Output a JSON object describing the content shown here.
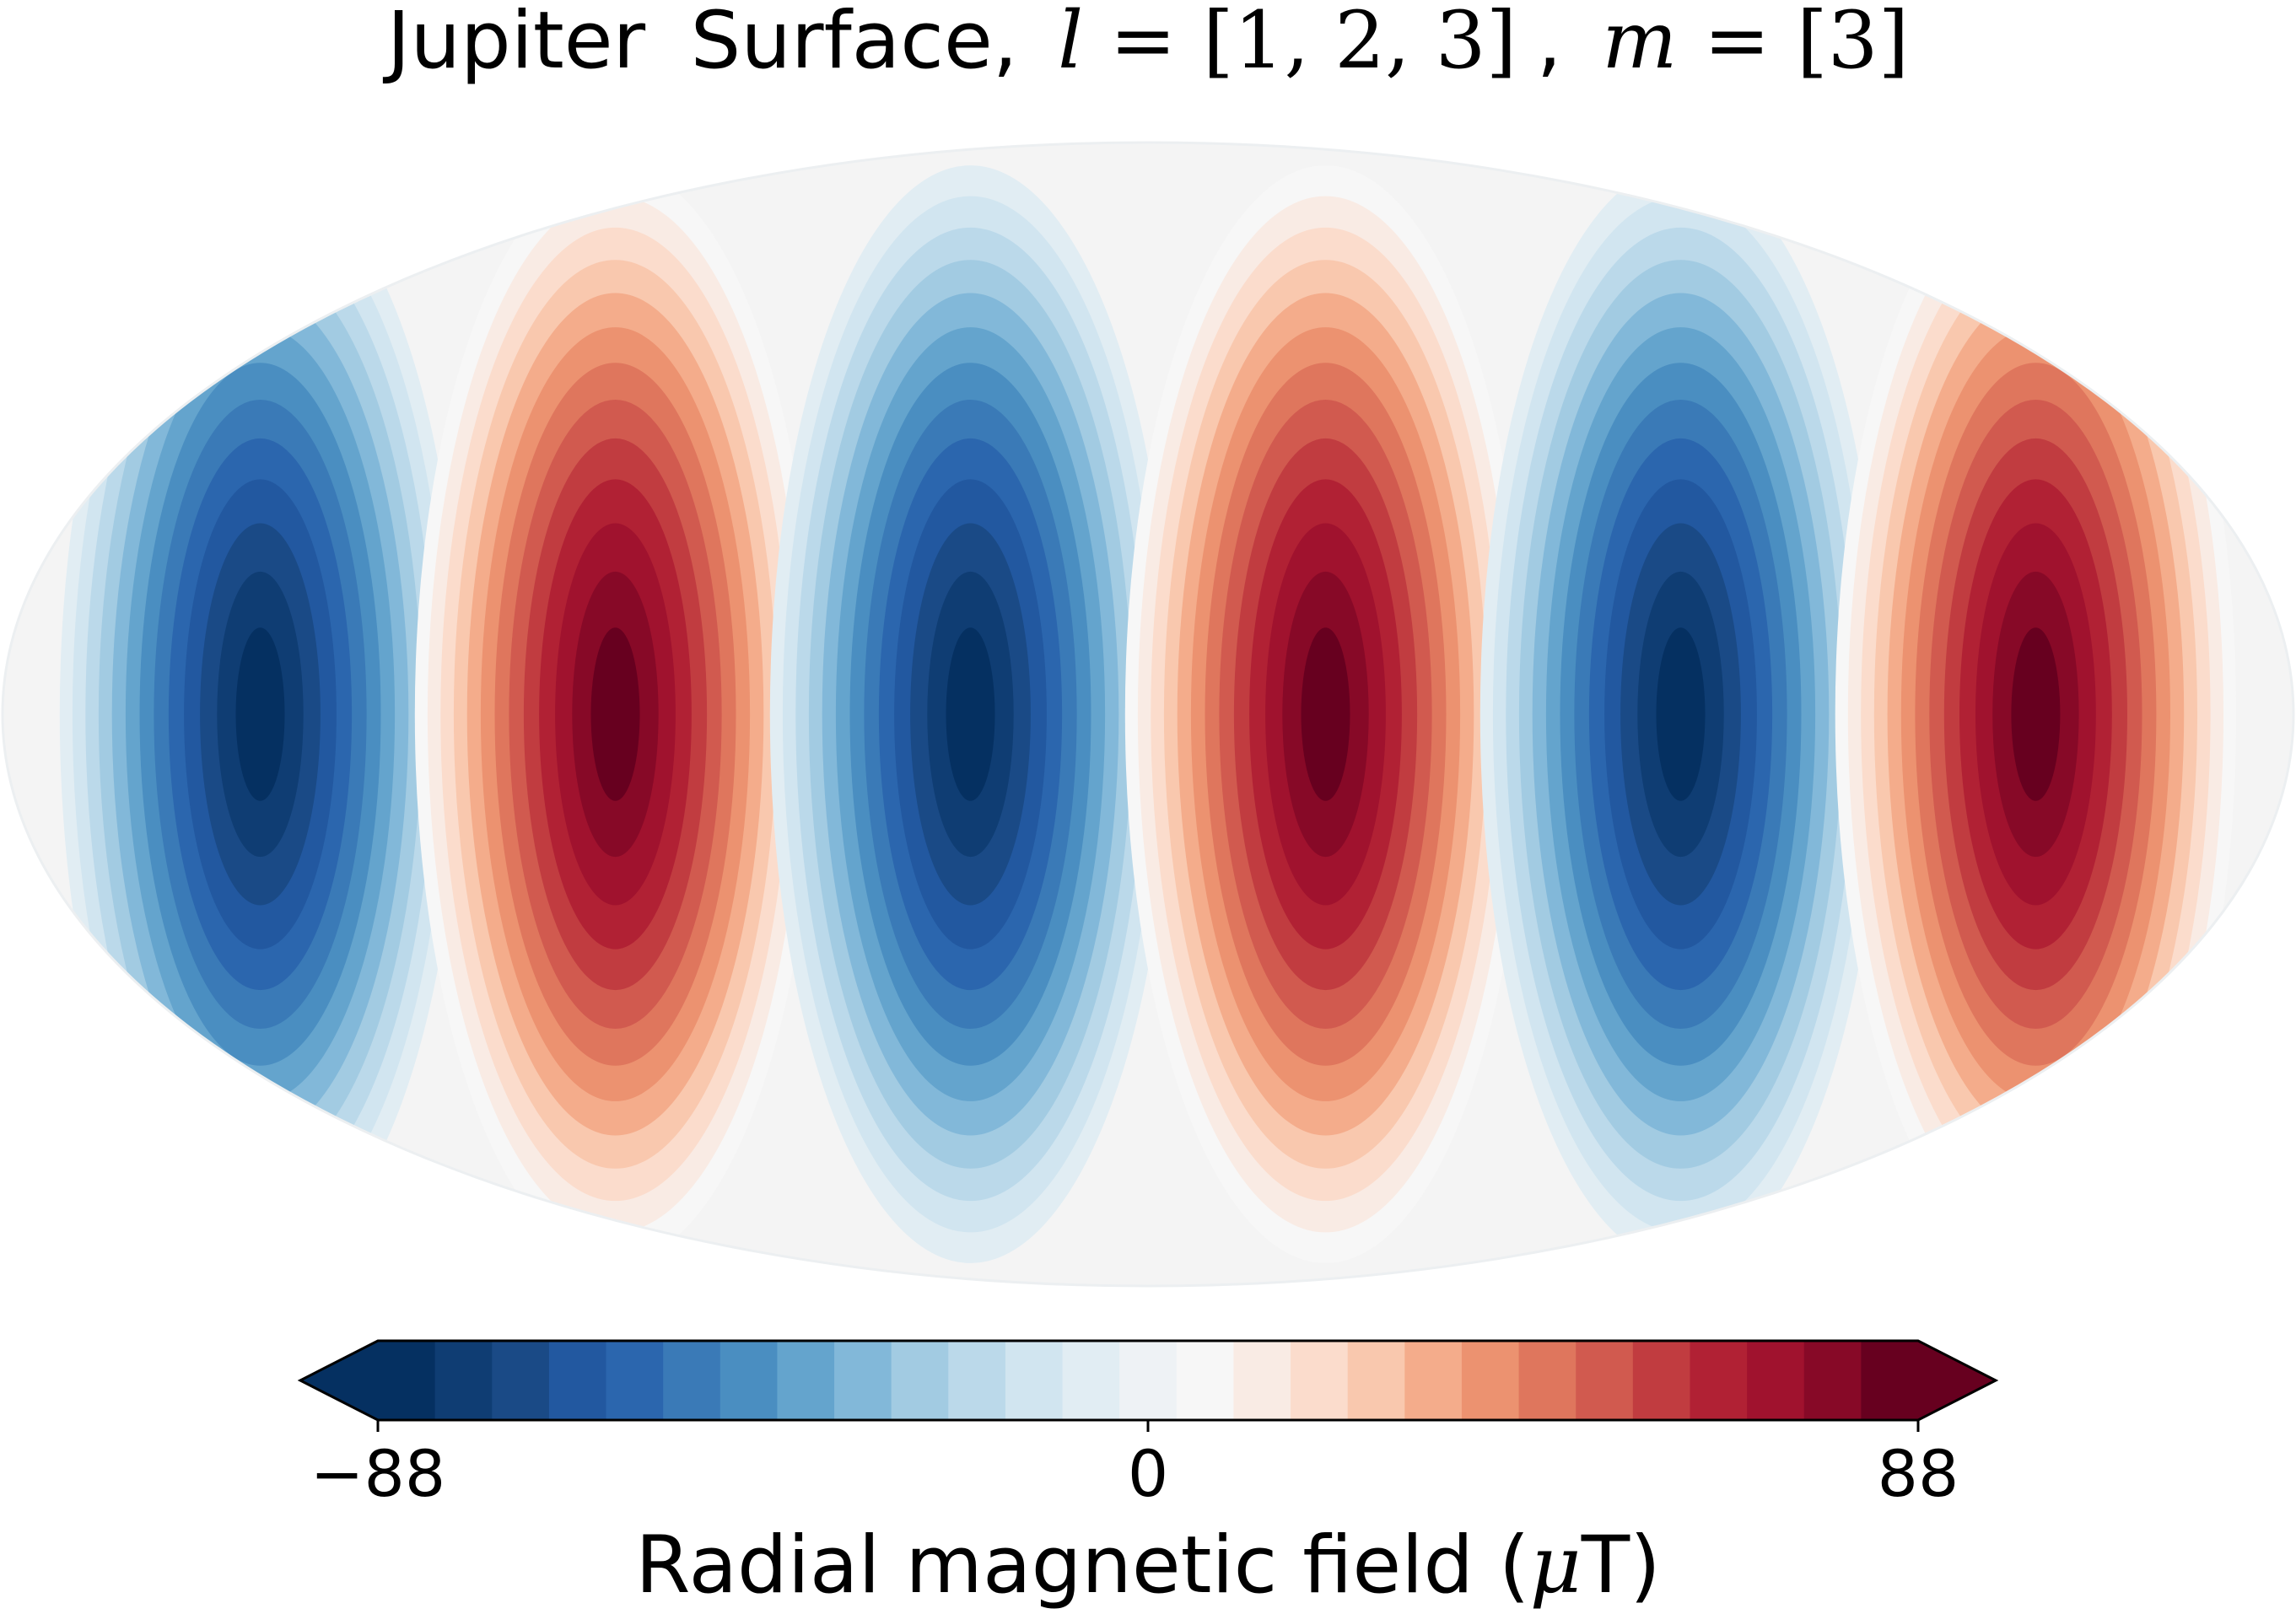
{
  "chart_data": {
    "type": "heatmap",
    "projection": "mollweide",
    "title": {
      "planet": "Jupiter",
      "surface": "Surface,",
      "l_symbol": "l",
      "equals": "=",
      "l_values": "[1, 2, 3]",
      "comma": ",",
      "m_symbol": "m",
      "m_values": "[3]"
    },
    "field": {
      "description_values": {
        "l": [
          1,
          2,
          3
        ],
        "m": [
          3
        ],
        "lobes_longitude_count": 6,
        "lobe_signs_left_to_right": [
          -1,
          1,
          -1,
          1,
          -1,
          1
        ],
        "peak_value": 88
      }
    },
    "colorbar": {
      "label": "Radial magnetic field (μT)",
      "label_plain": "Radial magnetic field (",
      "label_mu": "μ",
      "label_end": "T)",
      "vmin": -88,
      "vmax": 88,
      "ticks": [
        {
          "value": -88,
          "label": "−88"
        },
        {
          "value": 0,
          "label": "0"
        },
        {
          "value": 88,
          "label": "88"
        }
      ],
      "extend": "both",
      "levels": 29,
      "colors": [
        "#053061",
        "#0f3d73",
        "#1a4a86",
        "#2258a0",
        "#2b66ae",
        "#3a7ab7",
        "#4a8ec1",
        "#64a4cd",
        "#82b8d9",
        "#a2cbe2",
        "#bbd9ea",
        "#d1e5f0",
        "#e1edf3",
        "#eef2f5",
        "#f7f7f7",
        "#f9ebe4",
        "#fbdccc",
        "#f9c8ae",
        "#f4ac8b",
        "#ec9270",
        "#df765d",
        "#d15a4f",
        "#c13c40",
        "#b12134",
        "#a0122e",
        "#870927",
        "#67001f"
      ]
    }
  }
}
